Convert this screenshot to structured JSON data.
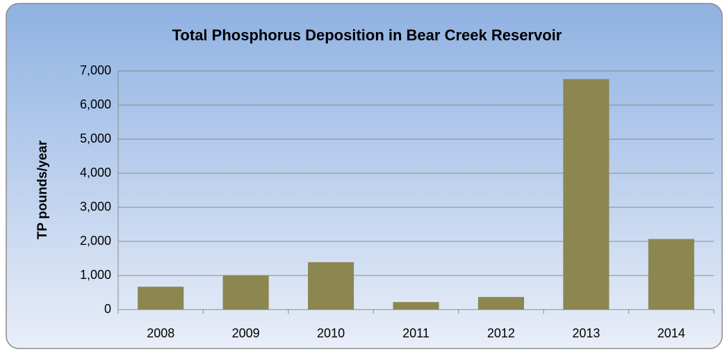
{
  "chart_data": {
    "type": "bar",
    "title": "Total Phosphorus Deposition in Bear Creek Reservoir",
    "y_label": "TP pounds/year",
    "categories": [
      "2008",
      "2009",
      "2010",
      "2011",
      "2012",
      "2013",
      "2014"
    ],
    "values": [
      670,
      1010,
      1390,
      220,
      370,
      6760,
      2070
    ],
    "color": "#8c8651",
    "ylim": [
      0,
      7000
    ],
    "yticks": [
      0,
      {
        "value": 1000,
        "label": "1,000"
      },
      {
        "value": 2000,
        "label": "2,000"
      },
      {
        "value": 3000,
        "label": "3,000"
      },
      {
        "value": 4000,
        "label": "4,000"
      },
      {
        "value": 5000,
        "label": "5,000"
      },
      {
        "value": 6000,
        "label": "6,000"
      },
      {
        "value": 7000,
        "label": "7,000"
      }
    ],
    "grid": true
  }
}
